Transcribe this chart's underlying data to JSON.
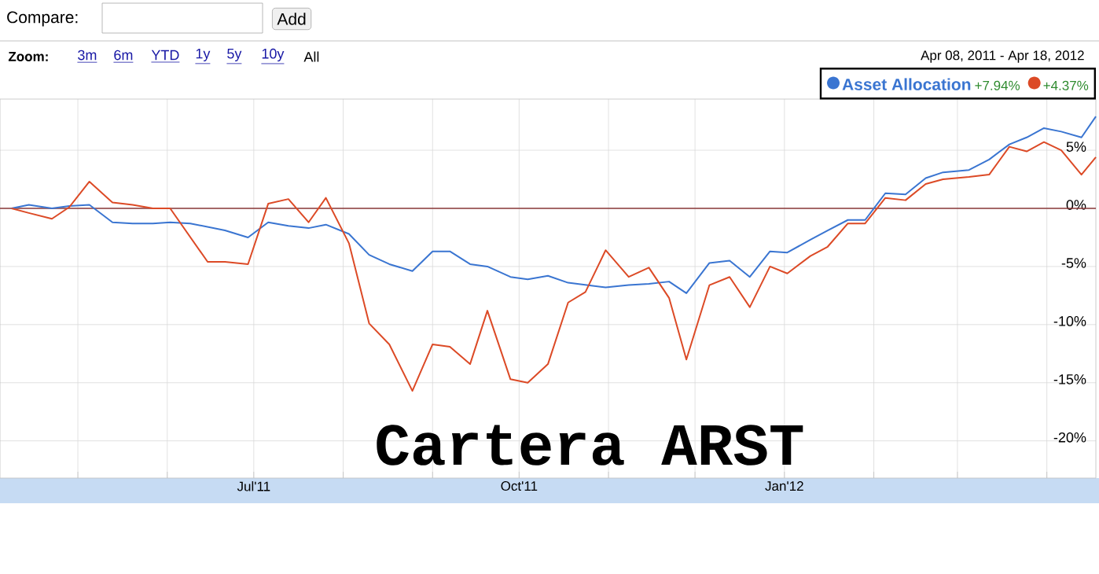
{
  "chart_data": {
    "type": "line",
    "title": "Cartera ARST",
    "subtitle": "Apr 08, 2011  -  Apr 18, 2012",
    "annotations": [
      "Compare:",
      "Add",
      "Zoom:",
      "3m",
      "6m",
      "YTD",
      "1y",
      "5y",
      "10y",
      "All",
      "+7.94%",
      "+4.37%"
    ],
    "xlim": [
      "2011-04-04",
      "2012-04-18"
    ],
    "xticks": [
      {
        "value": "2011-05-01",
        "label": null
      },
      {
        "value": "2011-06-01",
        "label": null
      },
      {
        "value": "2011-07-01",
        "label": "Jul'11"
      },
      {
        "value": "2011-08-01",
        "label": null
      },
      {
        "value": "2011-09-01",
        "label": null
      },
      {
        "value": "2011-10-01",
        "label": "Oct'11"
      },
      {
        "value": "2011-11-01",
        "label": null
      },
      {
        "value": "2011-12-01",
        "label": null
      },
      {
        "value": "2012-01-01",
        "label": "Jan'12"
      },
      {
        "value": "2012-02-01",
        "label": null
      },
      {
        "value": "2012-03-01",
        "label": null
      },
      {
        "value": "2012-04-01",
        "label": null
      }
    ],
    "ylim": [
      -23.2,
      9.4
    ],
    "yticks": [
      {
        "value": 5,
        "label": "5%"
      },
      {
        "value": 0,
        "label": "0%"
      },
      {
        "value": -5,
        "label": "-5%"
      },
      {
        "value": -10,
        "label": "-10%"
      },
      {
        "value": -15,
        "label": "-15%"
      },
      {
        "value": -20,
        "label": "-20%"
      }
    ],
    "grid": true,
    "legend": "top right",
    "ref_lines": [
      {
        "axis": "y",
        "value": 0,
        "color": "#8b3a3a"
      }
    ],
    "series": [
      {
        "name": "Asset Allocation",
        "color": "#3a75d1",
        "x": [
          "2011-04-08",
          "2011-04-14",
          "2011-04-22",
          "2011-04-28",
          "2011-05-05",
          "2011-05-13",
          "2011-05-20",
          "2011-05-27",
          "2011-06-02",
          "2011-06-09",
          "2011-06-21",
          "2011-06-29",
          "2011-07-06",
          "2011-07-13",
          "2011-07-20",
          "2011-07-26",
          "2011-08-03",
          "2011-08-10",
          "2011-08-17",
          "2011-08-25",
          "2011-09-01",
          "2011-09-07",
          "2011-09-14",
          "2011-09-20",
          "2011-09-28",
          "2011-10-04",
          "2011-10-11",
          "2011-10-18",
          "2011-10-31",
          "2011-11-08",
          "2011-11-15",
          "2011-11-22",
          "2011-11-28",
          "2011-12-06",
          "2011-12-13",
          "2011-12-20",
          "2011-12-27",
          "2012-01-02",
          "2012-01-10",
          "2012-01-16",
          "2012-01-23",
          "2012-01-29",
          "2012-02-05",
          "2012-02-12",
          "2012-02-19",
          "2012-02-25",
          "2012-03-05",
          "2012-03-12",
          "2012-03-19",
          "2012-03-25",
          "2012-03-31",
          "2012-04-06",
          "2012-04-13",
          "2012-04-18"
        ],
        "values": [
          0,
          0.3,
          0,
          0.2,
          0.3,
          -1.2,
          -1.3,
          -1.3,
          -1.2,
          -1.3,
          -1.9,
          -2.5,
          -1.2,
          -1.5,
          -1.7,
          -1.4,
          -2.2,
          -4.0,
          -4.8,
          -5.4,
          -3.7,
          -3.7,
          -4.8,
          -5.0,
          -5.9,
          -6.1,
          -5.8,
          -6.4,
          -6.8,
          -6.6,
          -6.5,
          -6.3,
          -7.3,
          -4.7,
          -4.5,
          -5.9,
          -3.7,
          -3.8,
          -2.7,
          -1.9,
          -1.0,
          -1.0,
          1.3,
          1.2,
          2.6,
          3.1,
          3.3,
          4.2,
          5.5,
          6.1,
          6.9,
          6.6,
          6.1,
          7.9
        ]
      },
      {
        "color": "#dc4a26",
        "x": [
          "2011-04-08",
          "2011-04-14",
          "2011-04-22",
          "2011-04-28",
          "2011-05-05",
          "2011-05-13",
          "2011-05-20",
          "2011-05-27",
          "2011-06-02",
          "2011-06-15",
          "2011-06-21",
          "2011-06-29",
          "2011-07-06",
          "2011-07-13",
          "2011-07-20",
          "2011-07-26",
          "2011-08-03",
          "2011-08-10",
          "2011-08-17",
          "2011-08-25",
          "2011-09-01",
          "2011-09-07",
          "2011-09-14",
          "2011-09-20",
          "2011-09-28",
          "2011-10-04",
          "2011-10-11",
          "2011-10-18",
          "2011-10-24",
          "2011-10-31",
          "2011-11-08",
          "2011-11-15",
          "2011-11-22",
          "2011-11-28",
          "2011-12-06",
          "2011-12-13",
          "2011-12-20",
          "2011-12-27",
          "2012-01-02",
          "2012-01-10",
          "2012-01-16",
          "2012-01-23",
          "2012-01-29",
          "2012-02-05",
          "2012-02-12",
          "2012-02-19",
          "2012-02-25",
          "2012-03-05",
          "2012-03-12",
          "2012-03-19",
          "2012-03-25",
          "2012-03-31",
          "2012-04-06",
          "2012-04-13",
          "2012-04-18"
        ],
        "values": [
          0,
          -0.4,
          -0.9,
          0.1,
          2.3,
          0.5,
          0.3,
          0,
          0,
          -4.6,
          -4.6,
          -4.8,
          0.4,
          0.8,
          -1.2,
          0.9,
          -3.0,
          -9.9,
          -11.7,
          -15.7,
          -11.7,
          -11.9,
          -13.4,
          -8.8,
          -14.7,
          -15.0,
          -13.4,
          -8.1,
          -7.2,
          -3.6,
          -5.9,
          -5.1,
          -7.7,
          -13.0,
          -6.6,
          -5.9,
          -8.5,
          -5.0,
          -5.6,
          -4.1,
          -3.3,
          -1.3,
          -1.3,
          0.9,
          0.7,
          2.1,
          2.5,
          2.7,
          2.9,
          5.3,
          4.9,
          5.7,
          5.0,
          2.9,
          4.4
        ]
      }
    ]
  }
}
